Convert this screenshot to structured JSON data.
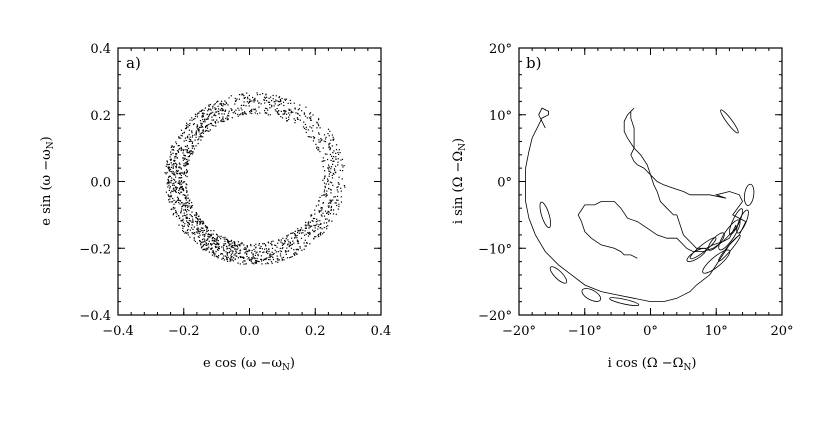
{
  "chart_data": [
    {
      "type": "scatter",
      "panel_label": "a)",
      "xlabel": "e cos (ω −ω",
      "xlabel_sub": "N",
      "xlabel_close": ")",
      "ylabel": "e sin (ω −ω",
      "ylabel_sub": "N",
      "ylabel_close": ")",
      "xlim": [
        -0.4,
        0.4
      ],
      "ylim": [
        -0.4,
        0.4
      ],
      "xticks": [
        -0.4,
        -0.2,
        0.0,
        0.2,
        0.4
      ],
      "xtick_labels": [
        "−0.4",
        "−0.2",
        "0.0",
        "0.2",
        "0.4"
      ],
      "yticks": [
        -0.4,
        -0.2,
        0.0,
        0.2,
        0.4
      ],
      "ytick_labels": [
        "−0.4",
        "−0.2",
        "0.0",
        "0.2",
        "0.4"
      ],
      "grid": false,
      "legend": "none",
      "color": "#000000",
      "ring": {
        "center_x": 0.02,
        "center_y": 0.01,
        "radius_min": 0.19,
        "radius_max": 0.27
      },
      "point_count": 2600
    },
    {
      "type": "line",
      "panel_label": "b)",
      "xlabel": "i cos (Ω −Ω",
      "xlabel_sub": "N",
      "xlabel_close": ")",
      "ylabel": "i sin (Ω −Ω",
      "ylabel_sub": "N",
      "ylabel_close": ")",
      "xlim": [
        -20,
        20
      ],
      "ylim": [
        -20,
        20
      ],
      "xticks": [
        -20,
        -10,
        0,
        10,
        20
      ],
      "xtick_labels": [
        "−20°",
        "−10°",
        "0°",
        "10°",
        "20°"
      ],
      "yticks": [
        -20,
        -10,
        0,
        10,
        20
      ],
      "ytick_labels": [
        "−20°",
        "−10°",
        "0°",
        "10°",
        "20°"
      ],
      "grid": false,
      "legend": "none",
      "color": "#000000",
      "series": [
        {
          "x": [
            -2,
            -3,
            -4,
            -4.5,
            -5.5,
            -7.5,
            -9,
            -10,
            -10.5,
            -11,
            -10,
            -8.5,
            -7.5,
            -5.5,
            -4.5,
            -3.5,
            -2,
            -0.5,
            1,
            2.5,
            4,
            5,
            5.5,
            6.5,
            8,
            9.5,
            11,
            12,
            13,
            13,
            12.5,
            12,
            11,
            9.5,
            8.5,
            7,
            6,
            5,
            4.5,
            4,
            3.5,
            2.5,
            1.5,
            1,
            0.5,
            0,
            -0.5,
            -1.5,
            -2.5,
            -3.5,
            -4,
            -4,
            -3.5,
            -2.5,
            -3,
            -3,
            -2.5,
            -2.5,
            -2.5,
            -3,
            -2.5,
            -2,
            -1,
            -0.5,
            0,
            1,
            2,
            3.5,
            5,
            5,
            6,
            8,
            9,
            11.5,
            10,
            12,
            13.5,
            14,
            12.5,
            14.5,
            13.5,
            12,
            11,
            10,
            9,
            7,
            6,
            4,
            2,
            0,
            -2.5,
            -5,
            -7.5,
            -10,
            -12,
            -14,
            -16,
            -17.5,
            -18.5,
            -19,
            -19,
            -19,
            -18.5,
            -18,
            -17,
            -16.5,
            -15.5,
            -15.5,
            -16.5,
            -17,
            -16.5,
            -16
          ],
          "y": [
            -11.5,
            -11,
            -11,
            -10.5,
            -10,
            -9.5,
            -8.5,
            -7.5,
            -6,
            -5,
            -3.5,
            -3.5,
            -3,
            -3,
            -4,
            -5.5,
            -6,
            -7,
            -8,
            -8.5,
            -8.5,
            -9.5,
            -10,
            -10.5,
            -10.5,
            -10,
            -9,
            -8,
            -7,
            -6.5,
            -7.5,
            -8.5,
            -9,
            -9.5,
            -10,
            -10,
            -9,
            -8,
            -6.5,
            -5,
            -5,
            -4,
            -3,
            -1.5,
            -0.5,
            1,
            2.5,
            4,
            5,
            6.5,
            7.5,
            9,
            10,
            11,
            10.5,
            9.5,
            8,
            6.5,
            5,
            4,
            3,
            2.5,
            2,
            1.5,
            1,
            0,
            -0.5,
            -1,
            -1.5,
            -1.5,
            -2,
            -2,
            -2,
            -2.5,
            -2,
            -1.5,
            -2,
            -3,
            -5,
            -6,
            -8,
            -9.5,
            -11,
            -12.5,
            -14,
            -15.5,
            -16.5,
            -17.5,
            -18,
            -18,
            -17.5,
            -17,
            -16.5,
            -15.5,
            -14,
            -12.5,
            -10.5,
            -8,
            -5.5,
            -3,
            -0.5,
            2,
            4.5,
            6.5,
            8.5,
            9.5,
            10,
            10.5,
            11,
            10,
            9,
            8
          ]
        }
      ],
      "extra_loops_count": 14
    }
  ]
}
